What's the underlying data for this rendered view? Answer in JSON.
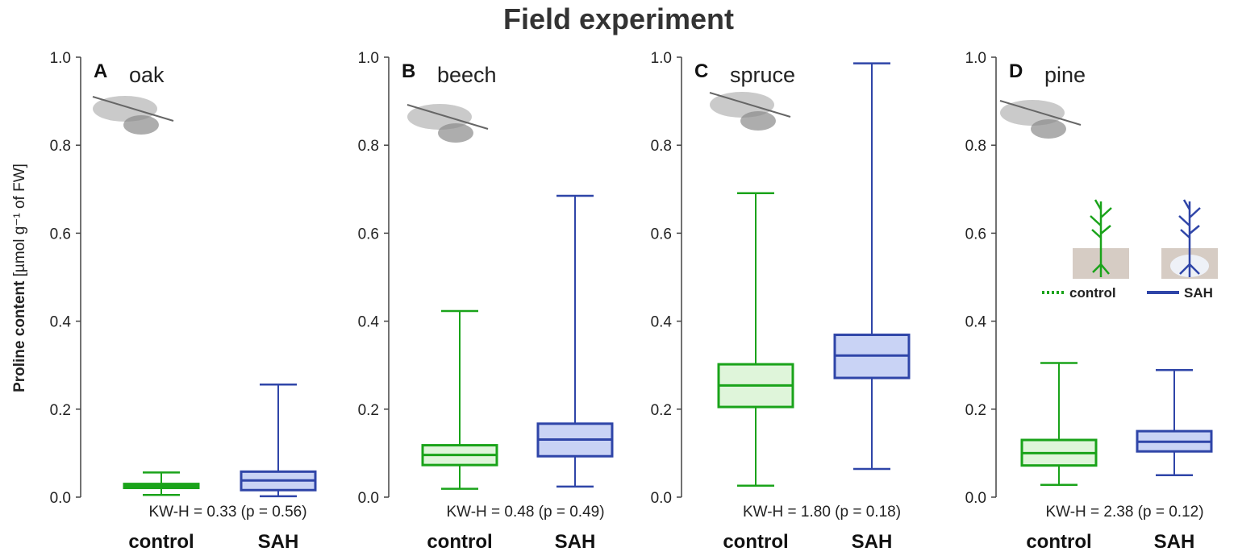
{
  "title": "Field experiment",
  "ylabel": "Proline content",
  "ylabel_unit": "[µmol g⁻¹ of FW]",
  "colors": {
    "control": "#1aa31a",
    "control_fill": "#dff5da",
    "SAH": "#2f45a8",
    "SAH_fill": "#c9d3f5"
  },
  "legend": {
    "control": "control",
    "SAH": "SAH"
  },
  "chart_data": [
    {
      "type": "box",
      "panel": "A",
      "species": "oak",
      "ylim": [
        0,
        1.0
      ],
      "yticks": [
        "0.0",
        "0.2",
        "0.4",
        "0.6",
        "0.8",
        "1.0"
      ],
      "categories": [
        "control",
        "SAH"
      ],
      "boxes": [
        {
          "group": "control",
          "min": 0.005,
          "q1": 0.021,
          "median": 0.025,
          "q3": 0.03,
          "max": 0.056
        },
        {
          "group": "SAH",
          "min": 0.002,
          "q1": 0.016,
          "median": 0.038,
          "q3": 0.058,
          "max": 0.256
        }
      ],
      "stat": "KW-H = 0.33 (p = 0.56)"
    },
    {
      "type": "box",
      "panel": "B",
      "species": "beech",
      "ylim": [
        0,
        1.0
      ],
      "yticks": [
        "0.0",
        "0.2",
        "0.4",
        "0.6",
        "0.8",
        "1.0"
      ],
      "categories": [
        "control",
        "SAH"
      ],
      "boxes": [
        {
          "group": "control",
          "min": 0.019,
          "q1": 0.073,
          "median": 0.096,
          "q3": 0.118,
          "max": 0.423
        },
        {
          "group": "SAH",
          "min": 0.024,
          "q1": 0.093,
          "median": 0.131,
          "q3": 0.167,
          "max": 0.685
        }
      ],
      "stat": "KW-H = 0.48 (p = 0.49)"
    },
    {
      "type": "box",
      "panel": "C",
      "species": "spruce",
      "ylim": [
        0,
        1.0
      ],
      "yticks": [
        "0.0",
        "0.2",
        "0.4",
        "0.6",
        "0.8",
        "1.0"
      ],
      "categories": [
        "control",
        "SAH"
      ],
      "boxes": [
        {
          "group": "control",
          "min": 0.026,
          "q1": 0.205,
          "median": 0.254,
          "q3": 0.302,
          "max": 0.691
        },
        {
          "group": "SAH",
          "min": 0.064,
          "q1": 0.271,
          "median": 0.322,
          "q3": 0.369,
          "max": 0.986
        }
      ],
      "stat": "KW-H = 1.80 (p = 0.18)"
    },
    {
      "type": "box",
      "panel": "D",
      "species": "pine",
      "ylim": [
        0,
        1.0
      ],
      "yticks": [
        "0.0",
        "0.2",
        "0.4",
        "0.6",
        "0.8",
        "1.0"
      ],
      "categories": [
        "control",
        "SAH"
      ],
      "boxes": [
        {
          "group": "control",
          "min": 0.028,
          "q1": 0.072,
          "median": 0.1,
          "q3": 0.13,
          "max": 0.305
        },
        {
          "group": "SAH",
          "min": 0.05,
          "q1": 0.104,
          "median": 0.126,
          "q3": 0.15,
          "max": 0.289
        }
      ],
      "stat": "KW-H = 2.38 (p = 0.12)"
    }
  ]
}
